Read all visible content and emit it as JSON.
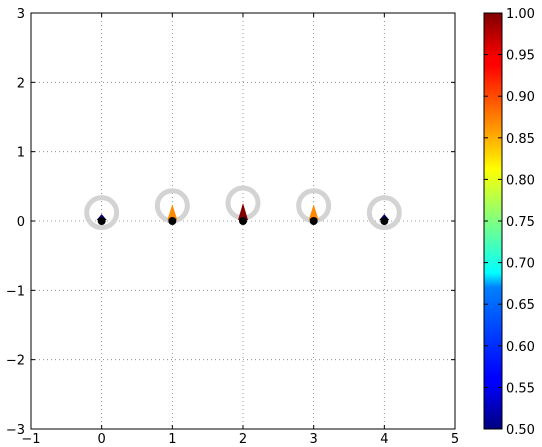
{
  "chart_data": {
    "type": "scatter",
    "title": "",
    "xlabel": "",
    "ylabel": "",
    "xlim": [
      -1,
      5
    ],
    "ylim": [
      -3,
      3
    ],
    "xticks": [
      -1,
      0,
      1,
      2,
      3,
      4,
      5
    ],
    "yticks": [
      -3,
      -2,
      -1,
      0,
      1,
      2,
      3
    ],
    "grid": true,
    "points": [
      {
        "x": 0,
        "y": 0,
        "ring_y": 0.12,
        "arrow_len": 0.1,
        "value": 0.5
      },
      {
        "x": 1,
        "y": 0,
        "ring_y": 0.22,
        "arrow_len": 0.24,
        "value": 0.87
      },
      {
        "x": 2,
        "y": 0,
        "ring_y": 0.26,
        "arrow_len": 0.26,
        "value": 1.0
      },
      {
        "x": 3,
        "y": 0,
        "ring_y": 0.22,
        "arrow_len": 0.24,
        "value": 0.87
      },
      {
        "x": 4,
        "y": 0,
        "ring_y": 0.12,
        "arrow_len": 0.1,
        "value": 0.5
      }
    ],
    "colorbar": {
      "colormap": "jet",
      "min": 0.5,
      "max": 1.0,
      "ticks": [
        "0.50",
        "0.55",
        "0.60",
        "0.65",
        "0.70",
        "0.75",
        "0.80",
        "0.85",
        "0.90",
        "0.95",
        "1.00"
      ]
    },
    "colors": {
      "ring": "#d3d3d3",
      "point": "#000000",
      "grid": "#7f7f7f"
    }
  }
}
